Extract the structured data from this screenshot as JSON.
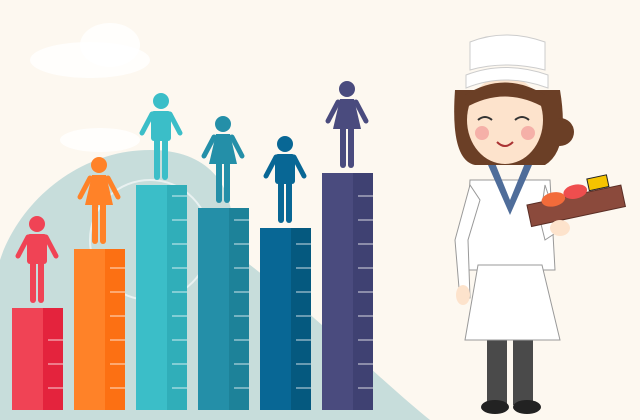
{
  "scene": {
    "background": "#fdf8f0",
    "wave_color": "#b9d6d6",
    "cloud_color": "#ffffff"
  },
  "bars": [
    {
      "figure": "male",
      "color": "#f04355",
      "shade": "#e4233d"
    },
    {
      "figure": "female",
      "color": "#ff8228",
      "shade": "#fc7013"
    },
    {
      "figure": "male",
      "color": "#3bbec8",
      "shade": "#30aeb9"
    },
    {
      "figure": "female",
      "color": "#248fa8",
      "shade": "#1d8299"
    },
    {
      "figure": "male",
      "color": "#086795",
      "shade": "#05597f"
    },
    {
      "figure": "female",
      "color": "#4a4b7e",
      "shade": "#3f4172"
    }
  ],
  "chef": {
    "hat": "#ffffff",
    "hair": "#6b3f26",
    "skin": "#fde3cc",
    "collar": "#4f6d9a",
    "apron": "#ffffff",
    "pants": "#4a4a4a",
    "tray": "#8b4a3c"
  }
}
